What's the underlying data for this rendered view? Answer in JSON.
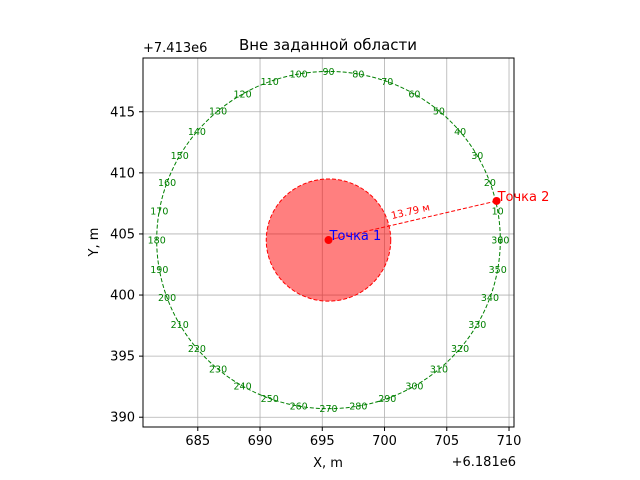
{
  "chart_data": {
    "type": "scatter",
    "title": "Вне заданной области",
    "xlabel": "X, m",
    "ylabel": "Y, m",
    "x_offset_label": "+6.181e6",
    "y_offset_label": "+7.413e6",
    "xlim": [
      680.6,
      710.4
    ],
    "ylim": [
      389.2,
      419.4
    ],
    "x_ticks": [
      685,
      690,
      695,
      700,
      705,
      710
    ],
    "y_ticks": [
      390,
      395,
      400,
      405,
      410,
      415
    ],
    "grid": true,
    "points": [
      {
        "name": "Точка 1",
        "x": 695.5,
        "y": 404.5,
        "color": "#ff0000",
        "label_color": "#0000ff"
      },
      {
        "name": "Точка 2",
        "x": 709.0,
        "y": 407.7,
        "color": "#ff0000",
        "label_color": "#ff0000"
      }
    ],
    "zone": {
      "center_x": 695.5,
      "center_y": 404.5,
      "radius": 5.0,
      "fill": "#ff0000",
      "fill_alpha": 0.5,
      "edge": "#ff0000"
    },
    "distance_label": "13.79 м",
    "azimuth_circle": {
      "center_x": 695.5,
      "center_y": 404.5,
      "radius": 13.8,
      "color": "#008000",
      "labels": [
        "0",
        "10",
        "20",
        "30",
        "40",
        "50",
        "60",
        "70",
        "80",
        "90",
        "100",
        "110",
        "120",
        "130",
        "140",
        "150",
        "160",
        "170",
        "180",
        "190",
        "200",
        "210",
        "220",
        "230",
        "240",
        "250",
        "260",
        "270",
        "280",
        "290",
        "300",
        "310",
        "320",
        "330",
        "340",
        "350",
        "360"
      ]
    }
  }
}
